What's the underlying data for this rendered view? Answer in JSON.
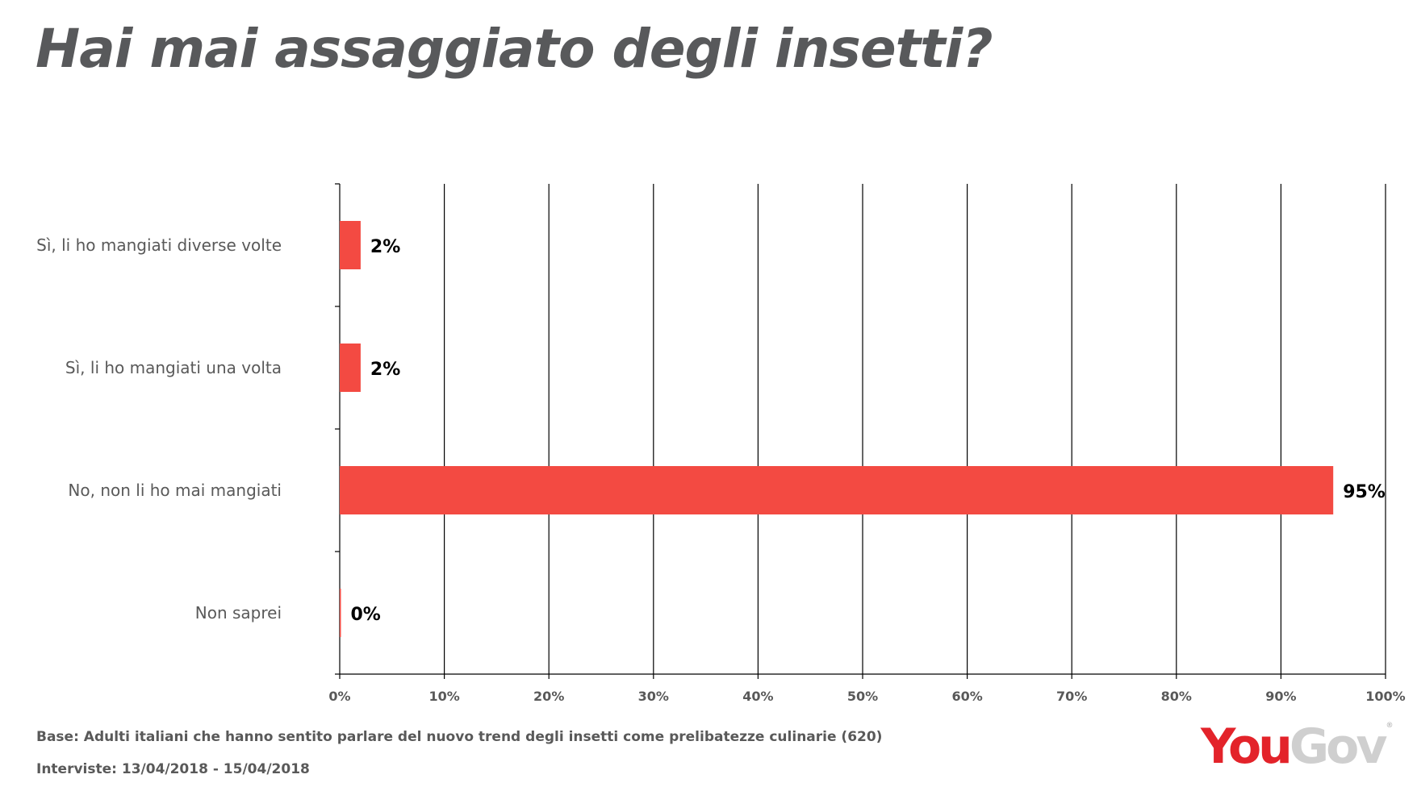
{
  "title": "Hai mai assaggiato degli insetti?",
  "chart_data": {
    "type": "bar",
    "orientation": "horizontal",
    "title": "",
    "categories": [
      "Sì, li ho mangiati diverse volte",
      "Sì, li ho mangiati una volta",
      "No, non li ho mai mangiati",
      "Non saprei"
    ],
    "values": [
      2,
      2,
      95,
      0
    ],
    "value_labels": [
      "2%",
      "2%",
      "95%",
      "0%"
    ],
    "x_ticks": [
      "0%",
      "10%",
      "20%",
      "30%",
      "40%",
      "50%",
      "60%",
      "70%",
      "80%",
      "90%",
      "100%"
    ],
    "xlim": [
      0,
      100
    ],
    "xlabel": "",
    "ylabel": "",
    "grid": "vertical",
    "bar_color": "#f34a42",
    "legend": "none"
  },
  "footer": {
    "base": "Base: Adulti italiani che hanno sentito parlare del nuovo trend degli insetti come prelibatezze culinarie (620)",
    "dates": "Interviste: 13/04/2018 - 15/04/2018"
  },
  "logo": {
    "you": "You",
    "gov": "Gov",
    "reg": "®",
    "you_color": "#e3232a",
    "gov_color": "#cfcfcf"
  }
}
